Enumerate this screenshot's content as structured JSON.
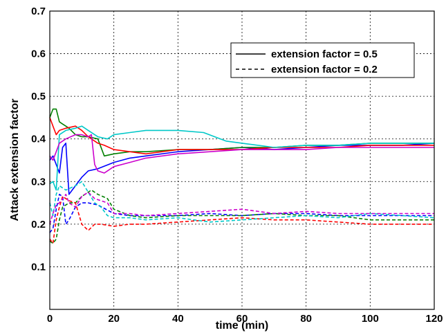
{
  "chart_data": {
    "type": "line",
    "xlabel": "time (min)",
    "ylabel": "Attack extension factor",
    "xlim": [
      0,
      120
    ],
    "ylim": [
      0,
      0.7
    ],
    "xticks": [
      0,
      20,
      40,
      60,
      80,
      100,
      120
    ],
    "yticks": [
      0.1,
      0.2,
      0.3,
      0.4,
      0.5,
      0.6,
      0.7
    ],
    "xtick_labels": [
      "0",
      "20",
      "40",
      "60",
      "80",
      "100",
      "120"
    ],
    "ytick_labels": [
      "0.1",
      "0.2",
      "0.3",
      "0.4",
      "0.5",
      "0.6",
      "0.7"
    ],
    "grid": true,
    "legend_position": "top-right",
    "legend": [
      {
        "label": "extension factor = 0.5",
        "style": "solid"
      },
      {
        "label": "extension factor = 0.2",
        "style": "dashed"
      }
    ],
    "series": [
      {
        "color": "#0000ff",
        "style": "solid",
        "x": [
          0,
          1,
          2,
          3,
          4,
          5,
          6,
          7,
          8,
          10,
          12,
          15,
          20,
          25,
          30,
          40,
          50,
          60,
          70,
          80,
          90,
          100,
          110,
          120
        ],
        "y": [
          0.35,
          0.36,
          0.34,
          0.32,
          0.38,
          0.39,
          0.27,
          0.28,
          0.29,
          0.31,
          0.325,
          0.33,
          0.345,
          0.355,
          0.36,
          0.37,
          0.375,
          0.38,
          0.375,
          0.38,
          0.385,
          0.385,
          0.385,
          0.39
        ]
      },
      {
        "color": "#008000",
        "style": "solid",
        "x": [
          0,
          1,
          2,
          3,
          4,
          5,
          6,
          8,
          10,
          12,
          15,
          17,
          20,
          25,
          30,
          40,
          50,
          60,
          70,
          80,
          90,
          100,
          110,
          120
        ],
        "y": [
          0.45,
          0.47,
          0.47,
          0.44,
          0.435,
          0.43,
          0.425,
          0.41,
          0.405,
          0.405,
          0.4,
          0.36,
          0.365,
          0.37,
          0.37,
          0.375,
          0.375,
          0.38,
          0.38,
          0.385,
          0.385,
          0.39,
          0.39,
          0.39
        ]
      },
      {
        "color": "#ff0000",
        "style": "solid",
        "x": [
          0,
          1,
          2,
          3,
          5,
          8,
          10,
          12,
          15,
          17,
          20,
          25,
          30,
          35,
          40,
          50,
          60,
          70,
          80,
          90,
          100,
          110,
          120
        ],
        "y": [
          0.45,
          0.43,
          0.41,
          0.42,
          0.425,
          0.43,
          0.42,
          0.405,
          0.39,
          0.385,
          0.375,
          0.37,
          0.365,
          0.37,
          0.375,
          0.375,
          0.375,
          0.38,
          0.38,
          0.38,
          0.385,
          0.385,
          0.385
        ]
      },
      {
        "color": "#00c8c8",
        "style": "solid",
        "x": [
          0,
          1,
          2,
          3,
          5,
          8,
          10,
          12,
          15,
          18,
          20,
          25,
          30,
          40,
          48,
          55,
          60,
          65,
          70,
          80,
          90,
          100,
          110,
          120
        ],
        "y": [
          0.295,
          0.3,
          0.28,
          0.41,
          0.42,
          0.425,
          0.43,
          0.42,
          0.405,
          0.4,
          0.41,
          0.415,
          0.42,
          0.42,
          0.415,
          0.395,
          0.39,
          0.385,
          0.38,
          0.385,
          0.385,
          0.39,
          0.39,
          0.39
        ]
      },
      {
        "color": "#cc00cc",
        "style": "solid",
        "x": [
          0,
          1,
          2,
          3,
          5,
          8,
          10,
          12,
          13,
          14,
          15,
          17,
          18,
          20,
          25,
          30,
          40,
          50,
          60,
          70,
          80,
          90,
          100,
          110,
          120
        ],
        "y": [
          0.36,
          0.35,
          0.37,
          0.39,
          0.4,
          0.41,
          0.41,
          0.405,
          0.41,
          0.34,
          0.325,
          0.32,
          0.325,
          0.335,
          0.345,
          0.355,
          0.365,
          0.37,
          0.375,
          0.375,
          0.375,
          0.38,
          0.38,
          0.38,
          0.38
        ]
      },
      {
        "color": "#0000ff",
        "style": "dashed",
        "x": [
          0,
          1,
          2,
          3,
          4,
          5,
          6,
          8,
          10,
          12,
          15,
          20,
          25,
          30,
          40,
          50,
          60,
          70,
          80,
          90,
          100,
          110,
          120
        ],
        "y": [
          0.18,
          0.19,
          0.235,
          0.27,
          0.265,
          0.2,
          0.21,
          0.24,
          0.25,
          0.25,
          0.245,
          0.225,
          0.22,
          0.22,
          0.22,
          0.225,
          0.22,
          0.225,
          0.225,
          0.22,
          0.22,
          0.22,
          0.22
        ]
      },
      {
        "color": "#008000",
        "style": "dashed",
        "x": [
          0,
          1,
          2,
          3,
          4,
          6,
          8,
          10,
          13,
          15,
          18,
          20,
          25,
          30,
          40,
          50,
          60,
          70,
          80,
          90,
          100,
          110,
          120
        ],
        "y": [
          0.16,
          0.155,
          0.165,
          0.21,
          0.24,
          0.25,
          0.25,
          0.265,
          0.28,
          0.27,
          0.26,
          0.235,
          0.22,
          0.215,
          0.22,
          0.22,
          0.22,
          0.225,
          0.22,
          0.22,
          0.21,
          0.21,
          0.21
        ]
      },
      {
        "color": "#ff0000",
        "style": "dashed",
        "x": [
          0,
          1,
          2,
          3,
          4,
          6,
          8,
          10,
          12,
          14,
          16,
          20,
          25,
          30,
          40,
          50,
          60,
          70,
          80,
          90,
          100,
          110,
          120
        ],
        "y": [
          0.165,
          0.155,
          0.21,
          0.24,
          0.265,
          0.255,
          0.25,
          0.2,
          0.185,
          0.2,
          0.2,
          0.195,
          0.2,
          0.2,
          0.205,
          0.21,
          0.215,
          0.21,
          0.21,
          0.205,
          0.2,
          0.2,
          0.2
        ]
      },
      {
        "color": "#00c8c8",
        "style": "dashed",
        "x": [
          0,
          1,
          2,
          3,
          5,
          8,
          10,
          12,
          14,
          16,
          18,
          20,
          25,
          30,
          40,
          50,
          60,
          70,
          80,
          90,
          100,
          110,
          120
        ],
        "y": [
          0.25,
          0.22,
          0.27,
          0.29,
          0.28,
          0.29,
          0.3,
          0.275,
          0.25,
          0.24,
          0.22,
          0.215,
          0.215,
          0.21,
          0.215,
          0.205,
          0.21,
          0.215,
          0.22,
          0.215,
          0.225,
          0.22,
          0.215
        ]
      },
      {
        "color": "#cc00cc",
        "style": "dashed",
        "x": [
          0,
          1,
          2,
          3,
          5,
          6,
          8,
          10,
          12,
          14,
          16,
          18,
          20,
          25,
          30,
          40,
          50,
          60,
          70,
          80,
          90,
          100,
          110,
          120
        ],
        "y": [
          0.2,
          0.225,
          0.245,
          0.25,
          0.27,
          0.25,
          0.24,
          0.265,
          0.275,
          0.26,
          0.255,
          0.25,
          0.225,
          0.225,
          0.22,
          0.225,
          0.23,
          0.235,
          0.225,
          0.23,
          0.225,
          0.225,
          0.225,
          0.225
        ]
      }
    ]
  }
}
